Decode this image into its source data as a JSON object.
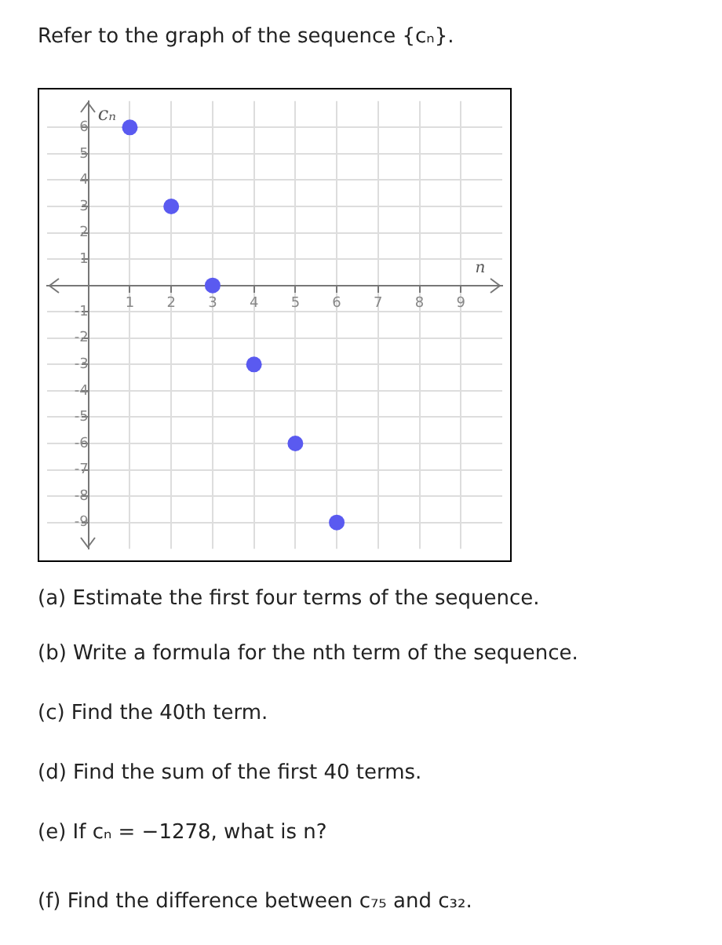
{
  "chart_data": {
    "type": "scatter",
    "title": "Refer to the graph of the sequence {cₙ}.",
    "xlabel": "n",
    "ylabel": "cₙ",
    "x": [
      1,
      2,
      3,
      4,
      5,
      6
    ],
    "series": [
      {
        "color": "#5a5af0",
        "values": [
          6,
          3,
          0,
          -3,
          -6,
          -9
        ]
      }
    ],
    "xlim": [
      -1,
      10
    ],
    "ylim": [
      -10,
      7
    ],
    "xticks": [
      {
        "value": 0,
        "label": null
      },
      1,
      2,
      3,
      4,
      5,
      6,
      7,
      8,
      9
    ],
    "yticks": [
      -9,
      -8,
      -7,
      -6,
      -5,
      -4,
      -3,
      -2,
      -1,
      {
        "value": 0,
        "label": null
      },
      1,
      2,
      3,
      4,
      5,
      6
    ],
    "grid": true,
    "marker": "circle",
    "annotations": [
      "(a) Estimate the first four terms of the sequence.",
      "(b) Write a formula for the nth term of the sequence.",
      "(c) Find the 40th term.",
      "(d) Find the sum of the first 40 terms.",
      "(e) If cₙ = −1278, what is n?",
      "(f) Find the difference between c₇₅ and c₃₂."
    ]
  }
}
